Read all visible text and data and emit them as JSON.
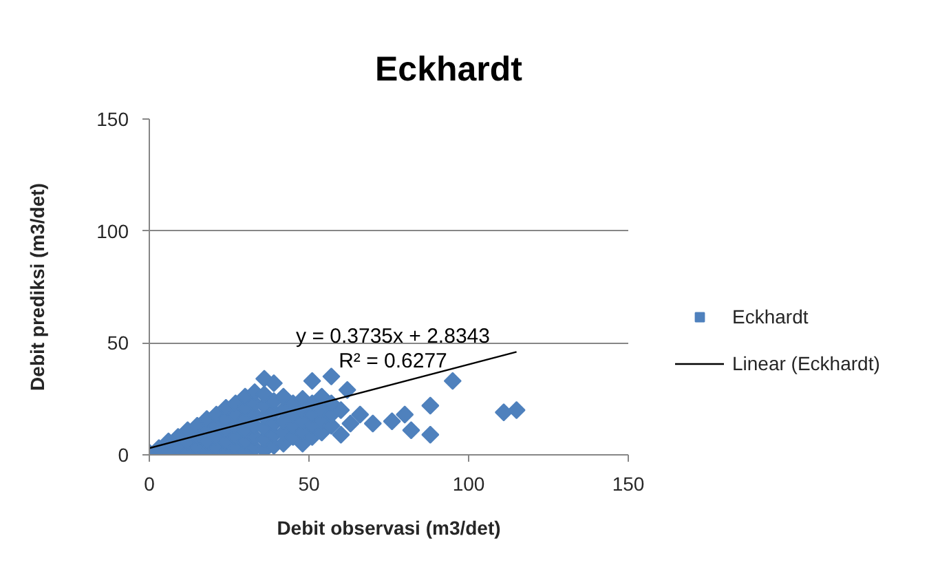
{
  "chart_data": {
    "type": "scatter",
    "title": "Eckhardt",
    "xlabel": "Debit observasi (m3/det)",
    "ylabel": "Debit prediksi (m3/det)",
    "xlim": [
      0,
      150
    ],
    "ylim": [
      0,
      150
    ],
    "xticks": [
      0,
      50,
      100,
      150
    ],
    "yticks": [
      0,
      50,
      100,
      150
    ],
    "grid": "y",
    "legend": "right",
    "series": [
      {
        "name": "Eckhardt",
        "color": "#4f81bd",
        "marker": "diamond",
        "x": [
          0,
          3,
          6,
          6,
          9,
          9,
          12,
          12,
          12,
          15,
          15,
          15,
          18,
          18,
          18,
          18,
          21,
          21,
          21,
          21,
          24,
          24,
          24,
          24,
          24,
          27,
          27,
          27,
          27,
          27,
          30,
          30,
          30,
          30,
          30,
          30,
          33,
          33,
          33,
          33,
          33,
          33,
          36,
          36,
          36,
          36,
          36,
          36,
          36,
          39,
          39,
          39,
          39,
          39,
          39,
          42,
          42,
          42,
          42,
          42,
          45,
          45,
          45,
          45,
          48,
          48,
          48,
          48,
          48,
          51,
          51,
          51,
          51,
          51,
          54,
          54,
          54,
          54,
          57,
          57,
          57,
          57,
          60,
          60,
          62,
          63,
          66,
          70,
          76,
          80,
          82,
          88,
          88,
          95,
          111,
          115
        ],
        "values": [
          1,
          3,
          1,
          6,
          3,
          8,
          1,
          6,
          11,
          3,
          8,
          13,
          1,
          6,
          11,
          16,
          3,
          8,
          13,
          18,
          1,
          6,
          11,
          16,
          21,
          3,
          8,
          13,
          18,
          23,
          1,
          6,
          11,
          16,
          21,
          26,
          3,
          8,
          13,
          18,
          23,
          28,
          2,
          7,
          12,
          17,
          22,
          27,
          34,
          4,
          9,
          14,
          19,
          24,
          32,
          5,
          10,
          15,
          20,
          26,
          8,
          13,
          18,
          23,
          5,
          10,
          15,
          20,
          25,
          8,
          13,
          18,
          23,
          33,
          10,
          15,
          20,
          26,
          13,
          18,
          23,
          35,
          9,
          20,
          29,
          14,
          18,
          14,
          15,
          18,
          11,
          9,
          22,
          33,
          19,
          20
        ]
      },
      {
        "name": "Linear (Eckhardt)",
        "type": "line",
        "color": "#000000",
        "x": [
          0,
          115
        ],
        "values": [
          3,
          46
        ]
      }
    ],
    "annotations": [
      "y = 0.3735x + 2.8343",
      "R² = 0.6277"
    ]
  }
}
